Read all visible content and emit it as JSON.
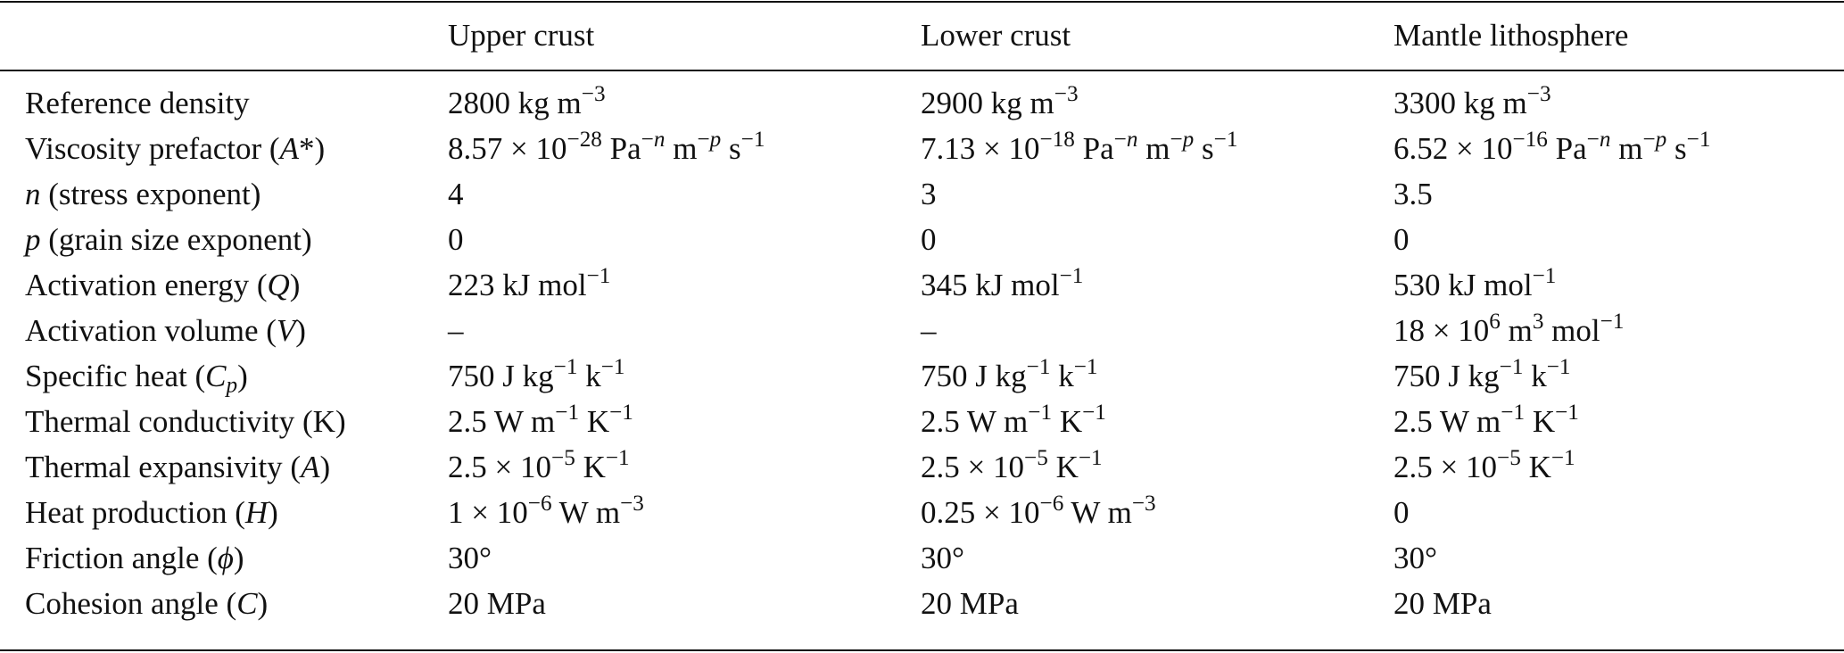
{
  "table": {
    "headers": [
      "",
      "Upper crust",
      "Lower crust",
      "Mantle lithosphere"
    ],
    "rows": [
      {
        "label": "Reference density",
        "values": [
          "2800 kg m<sup>−3</sup>",
          "2900 kg m<sup>−3</sup>",
          "3300 kg m<sup>−3</sup>"
        ]
      },
      {
        "label": "Viscosity prefactor (<i>A</i>*)",
        "values": [
          "8.57 × 10<sup>−28</sup> Pa<sup>−<i>n</i></sup> m<sup>−<i>p</i></sup> s<sup>−1</sup>",
          "7.13 × 10<sup>−18</sup> Pa<sup>−<i>n</i></sup> m<sup>−<i>p</i></sup> s<sup>−1</sup>",
          "6.52 × 10<sup>−16</sup> Pa<sup>−<i>n</i></sup> m<sup>−<i>p</i></sup> s<sup>−1</sup>"
        ]
      },
      {
        "label": "<i>n</i> (stress exponent)",
        "values": [
          "4",
          "3",
          "3.5"
        ]
      },
      {
        "label": "<i>p</i> (grain size exponent)",
        "values": [
          "0",
          "0",
          "0"
        ]
      },
      {
        "label": "Activation energy (<i>Q</i>)",
        "values": [
          "223 kJ mol<sup>−1</sup>",
          "345 kJ mol<sup>−1</sup>",
          "530 kJ mol<sup>−1</sup>"
        ]
      },
      {
        "label": "Activation volume (<i>V</i>)",
        "values": [
          "–",
          "–",
          "18 × 10<sup>6</sup> m<sup>3</sup> mol<sup>−1</sup>"
        ]
      },
      {
        "label": "Specific heat (<i>C</i><sub><i>p</i></sub>)",
        "values": [
          "750 J kg<sup>−1</sup> k<sup>−1</sup>",
          "750 J kg<sup>−1</sup> k<sup>−1</sup>",
          "750 J kg<sup>−1</sup> k<sup>−1</sup>"
        ]
      },
      {
        "label": "Thermal conductivity (K)",
        "values": [
          "2.5 W m<sup>−1</sup> K<sup>−1</sup>",
          "2.5 W m<sup>−1</sup> K<sup>−1</sup>",
          "2.5 W m<sup>−1</sup> K<sup>−1</sup>"
        ]
      },
      {
        "label": "Thermal expansivity (<i>A</i>)",
        "values": [
          "2.5 × 10<sup>−5</sup> K<sup>−1</sup>",
          "2.5 × 10<sup>−5</sup> K<sup>−1</sup>",
          "2.5 × 10<sup>−5</sup> K<sup>−1</sup>"
        ]
      },
      {
        "label": "Heat production (<i>H</i>)",
        "values": [
          "1 × 10<sup>−6</sup> W m<sup>−3</sup>",
          "0.25 × 10<sup>−6</sup> W m<sup>−3</sup>",
          "0"
        ]
      },
      {
        "label": "Friction angle (<i>ϕ</i>)",
        "values": [
          "30°",
          "30°",
          "30°"
        ]
      },
      {
        "label": "Cohesion angle (<i>C</i>)",
        "values": [
          "20 MPa",
          "20 MPa",
          "20 MPa"
        ]
      }
    ]
  }
}
